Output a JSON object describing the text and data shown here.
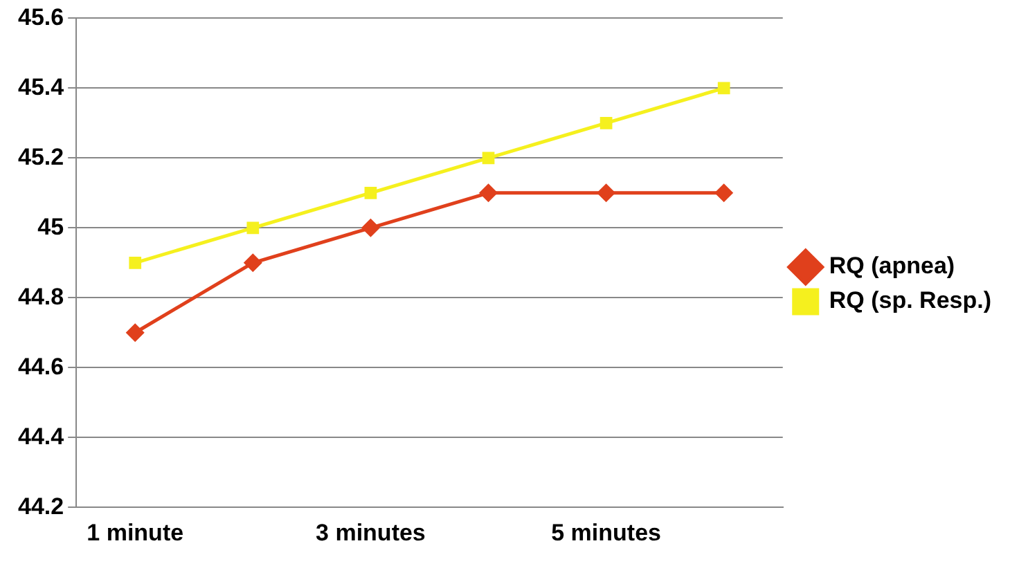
{
  "chart_data": {
    "type": "line",
    "categories": [
      "1 minute",
      null,
      "3 minutes",
      null,
      "5 minutes",
      null
    ],
    "series": [
      {
        "name": "RQ (apnea)",
        "color": "#e0401c",
        "marker": "diamond",
        "values": [
          44.7,
          44.9,
          45.0,
          45.1,
          45.1,
          45.1
        ]
      },
      {
        "name": "RQ (sp. Resp.)",
        "color": "#f5f01e",
        "marker": "square",
        "values": [
          44.9,
          45.0,
          45.1,
          45.2,
          45.3,
          45.4
        ]
      }
    ],
    "ylim": [
      44.2,
      45.6
    ],
    "yticks": [
      44.2,
      44.4,
      44.6,
      44.8,
      45,
      45.2,
      45.4,
      45.6
    ],
    "grid": "y",
    "legend": "right"
  }
}
